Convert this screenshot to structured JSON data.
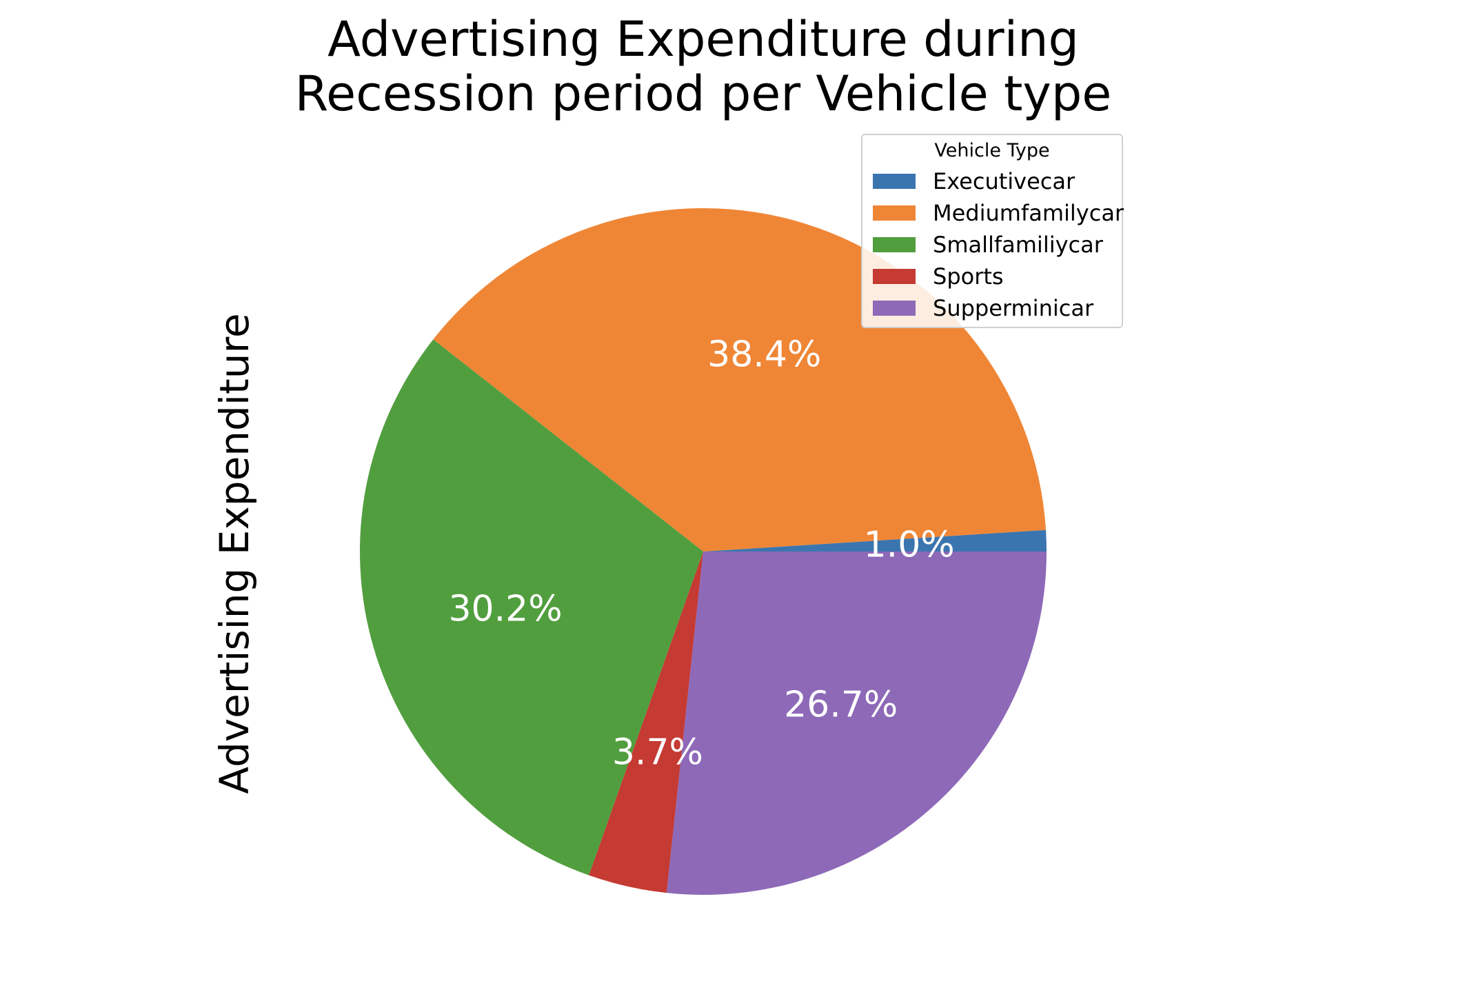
{
  "chart_data": {
    "type": "pie",
    "title_lines": [
      "Advertising Expenditure during",
      "Recession period per Vehicle type"
    ],
    "ylabel": "Advertising Expenditure",
    "legend": {
      "title": "Vehicle Type",
      "placement": "upper right"
    },
    "categories": [
      "Executivecar",
      "Mediumfamilycar",
      "Smallfamiliycar",
      "Sports",
      "Supperminicar"
    ],
    "values": [
      1.0,
      38.4,
      30.2,
      3.7,
      26.7
    ],
    "labels": [
      "1.0%",
      "38.4%",
      "30.2%",
      "3.7%",
      "26.7%"
    ],
    "colors": [
      "#3b75af",
      "#ef8636",
      "#519e3e",
      "#c53a32",
      "#8d69b8"
    ],
    "start_angle_deg": 0,
    "direction": "counterclockwise"
  }
}
